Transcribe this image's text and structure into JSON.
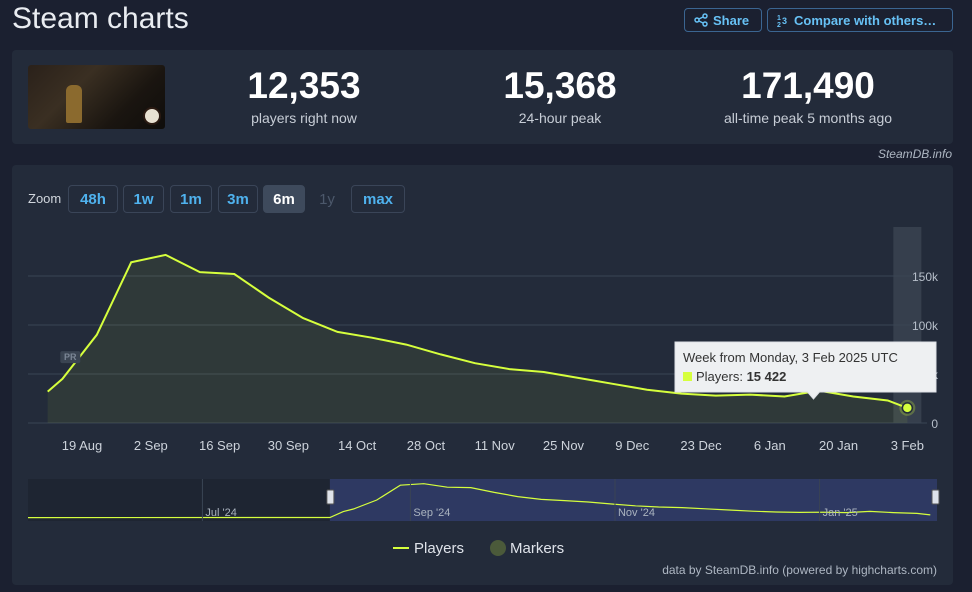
{
  "page_title": "Steam charts",
  "buttons": {
    "share": "Share",
    "compare": "Compare with others…"
  },
  "stats": [
    {
      "value": "12,353",
      "label": "players right now"
    },
    {
      "value": "15,368",
      "label": "24-hour peak"
    },
    {
      "value": "171,490",
      "label": "all-time peak 5 months ago"
    }
  ],
  "credit": "SteamDB.info",
  "zoom": {
    "label": "Zoom",
    "options": [
      "48h",
      "1w",
      "1m",
      "3m",
      "6m",
      "1y",
      "max"
    ],
    "active": "6m",
    "disabled": [
      "1y"
    ]
  },
  "legend": {
    "players": "Players",
    "markers": "Markers"
  },
  "footer": "data by SteamDB.info (powered by highcharts.com)",
  "colors": {
    "line": "#d6ff3d",
    "accent": "#67c1f5",
    "marker": "#4b5a3a"
  },
  "chart_data": {
    "type": "line",
    "x": [
      "2024-08-12",
      "2024-08-15",
      "2024-08-22",
      "2024-08-29",
      "2024-09-05",
      "2024-09-12",
      "2024-09-19",
      "2024-09-26",
      "2024-10-03",
      "2024-10-10",
      "2024-10-17",
      "2024-10-24",
      "2024-10-31",
      "2024-11-07",
      "2024-11-14",
      "2024-11-21",
      "2024-11-28",
      "2024-12-05",
      "2024-12-12",
      "2024-12-19",
      "2024-12-26",
      "2025-01-02",
      "2025-01-09",
      "2025-01-16",
      "2025-01-23",
      "2025-01-30",
      "2025-02-03"
    ],
    "series": [
      {
        "name": "Players",
        "values": [
          32000,
          45000,
          90000,
          164000,
          171490,
          154000,
          152000,
          128000,
          107000,
          93000,
          87000,
          80000,
          70000,
          61000,
          55000,
          52000,
          46000,
          40000,
          34000,
          30000,
          28000,
          29000,
          27000,
          33000,
          27000,
          23000,
          15422
        ]
      }
    ],
    "x_tick_labels": [
      "19 Aug",
      "2 Sep",
      "16 Sep",
      "30 Sep",
      "14 Oct",
      "28 Oct",
      "11 Nov",
      "25 Nov",
      "9 Dec",
      "23 Dec",
      "6 Jan",
      "20 Jan",
      "3 Feb"
    ],
    "x_ticks": [
      "2024-08-19",
      "2024-09-02",
      "2024-09-16",
      "2024-09-30",
      "2024-10-14",
      "2024-10-28",
      "2024-11-11",
      "2024-11-25",
      "2024-12-09",
      "2024-12-23",
      "2025-01-06",
      "2025-01-20",
      "2025-02-03"
    ],
    "y_ticks": [
      0,
      50000,
      100000,
      150000
    ],
    "y_tick_labels": [
      "0",
      "50k",
      "100k",
      "150k"
    ],
    "ylim": [
      0,
      200000
    ],
    "marker_badge": "PR",
    "tooltip": {
      "title": "Week from Monday, 3 Feb 2025 UTC",
      "series": "Players:",
      "value": "15 422"
    },
    "navigator": {
      "labels": [
        "Jul '24",
        "Sep '24",
        "Nov '24",
        "Jan '25"
      ]
    }
  }
}
